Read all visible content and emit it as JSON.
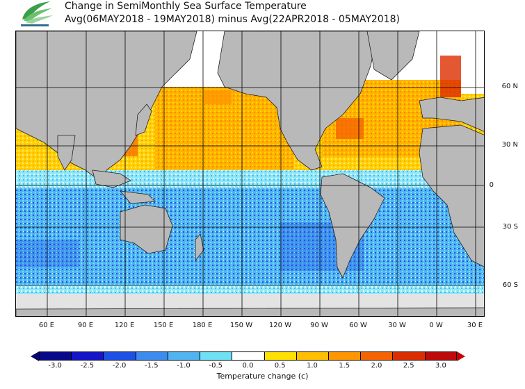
{
  "title": {
    "line1": "Change in SemiMonthly Sea Surface Temperature",
    "line2": "Avg(06MAY2018 - 19MAY2018) minus Avg(22APR2018 - 05MAY2018)"
  },
  "logo": {
    "text": "",
    "color": "#2e8b3a"
  },
  "map": {
    "lat_labels": [
      "60 N",
      "30 N",
      "0",
      "30 S",
      "60 S"
    ],
    "lon_labels": [
      "60 E",
      "90 E",
      "120 E",
      "150 E",
      "180 E",
      "150 W",
      "120 W",
      "90 W",
      "60 W",
      "30 W",
      "0 W",
      "30 E"
    ],
    "land_color": "#b9b9b9",
    "ice_color": "#e3e3e3",
    "grid_color": "#000000"
  },
  "colorbar": {
    "label": "Temperature change  (c)",
    "ticks": [
      "-3.0",
      "-2.5",
      "-2.0",
      "-1.5",
      "-1.0",
      "-0.5",
      "0.0",
      "0.5",
      "1.0",
      "1.5",
      "2.0",
      "2.5",
      "3.0"
    ],
    "colors": [
      "#08088a",
      "#1414c8",
      "#1e50e6",
      "#3c8cf0",
      "#50b4f0",
      "#6ee1f5",
      "#ffffff",
      "#ffe100",
      "#ffbe00",
      "#ff9600",
      "#f56400",
      "#dc2d00",
      "#be0a0a"
    ],
    "min_arrow_color": "#06066e",
    "max_arrow_color": "#c80000"
  }
}
